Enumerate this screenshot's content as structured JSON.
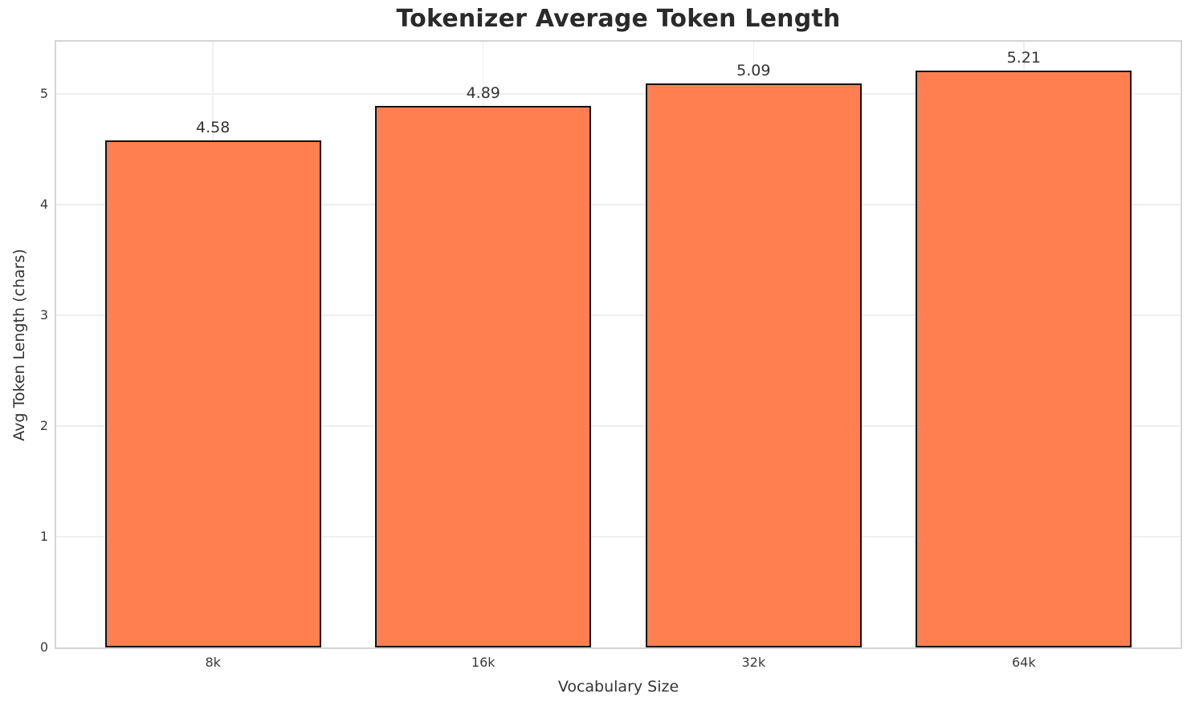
{
  "chart_data": {
    "type": "bar",
    "title": "Tokenizer Average Token Length",
    "xlabel": "Vocabulary Size",
    "ylabel": "Avg Token Length (chars)",
    "categories": [
      "8k",
      "16k",
      "32k",
      "64k"
    ],
    "values": [
      4.58,
      4.89,
      5.09,
      5.21
    ],
    "bar_labels": [
      "4.58",
      "4.89",
      "5.09",
      "5.21"
    ],
    "yticks": [
      0,
      1,
      2,
      3,
      4,
      5
    ],
    "ylim": [
      0,
      5.47
    ],
    "xlim": [
      -0.58,
      3.58
    ],
    "bar_width_units": 0.8,
    "grid": true,
    "legend_position": "none",
    "colors": {
      "bar_fill": "#FF7F50",
      "bar_edge": "#111111",
      "grid": "#efefef",
      "spine": "#d5d5d5",
      "title_text": "#2a2a2a",
      "tick_text": "#3a3a3a",
      "label_text": "#333333",
      "background": "#ffffff"
    }
  }
}
